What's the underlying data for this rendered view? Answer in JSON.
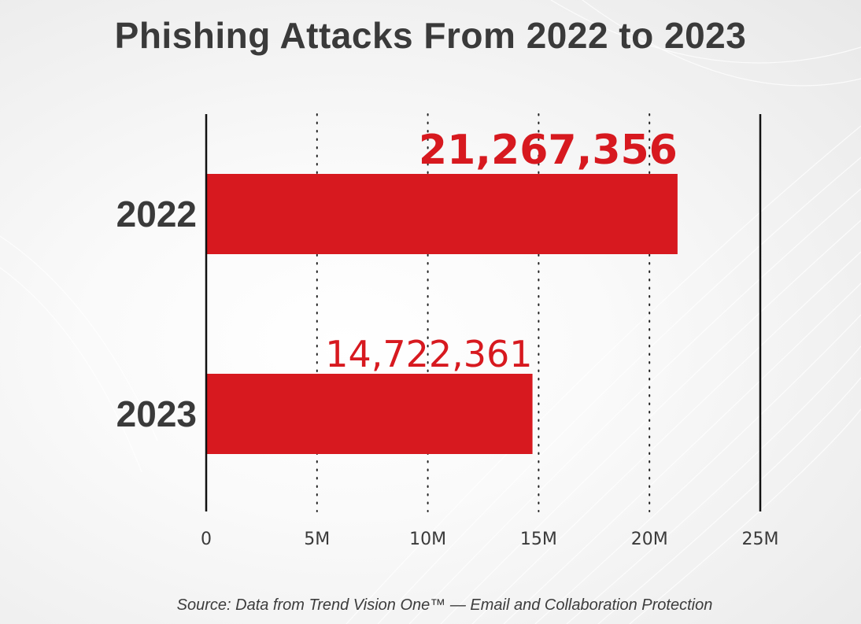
{
  "chart_data": {
    "type": "bar",
    "orientation": "horizontal",
    "title": "Phishing Attacks From 2022 to 2023",
    "categories": [
      "2022",
      "2023"
    ],
    "values": [
      21267356,
      14722361
    ],
    "value_labels": [
      "21,267,356",
      "14,722,361"
    ],
    "xlabel": "",
    "ylabel": "",
    "xlim": [
      0,
      25000000
    ],
    "ticks": [
      0,
      5000000,
      10000000,
      15000000,
      20000000,
      25000000
    ],
    "tick_labels": [
      "0",
      "5M",
      "10M",
      "15M",
      "20M",
      "25M"
    ],
    "grid": "dotted vertical",
    "bar_color": "#d7191f",
    "source": "Source: Data from Trend Vision One™ — Email and Collaboration Protection"
  },
  "colors": {
    "bar": "#d7191f",
    "text": "#3a3a3a",
    "axis": "#111111"
  }
}
